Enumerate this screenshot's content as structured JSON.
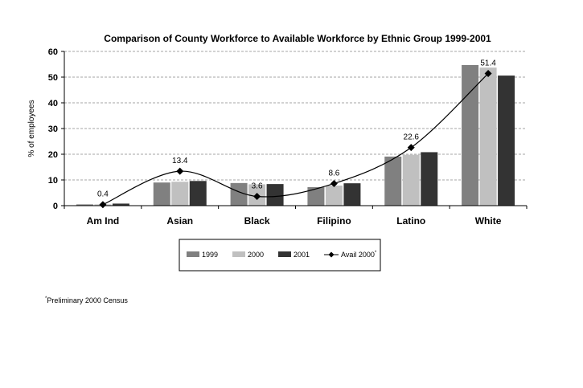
{
  "chart_data": {
    "type": "bar",
    "title": "Comparison of County Workforce to Available Workforce by Ethnic Group 1999-2001",
    "ylabel": "% of employees",
    "xlabel": "",
    "ylim": [
      0,
      60
    ],
    "yticks": [
      "0",
      "10",
      "20",
      "30",
      "40",
      "50",
      "60"
    ],
    "grid": true,
    "legend_position": "bottom",
    "categories": [
      "Am Ind",
      "Asian",
      "Black",
      "Filipino",
      "Latino",
      "White"
    ],
    "series": [
      {
        "name": "1999",
        "type": "bar",
        "color": "#808080",
        "values": [
          0.5,
          9.0,
          8.8,
          7.2,
          19.1,
          54.7
        ]
      },
      {
        "name": "2000",
        "type": "bar",
        "color": "#c0c0c0",
        "values": [
          0.5,
          9.3,
          8.3,
          7.8,
          19.8,
          53.7
        ]
      },
      {
        "name": "2001",
        "type": "bar",
        "color": "#333333",
        "values": [
          0.8,
          9.6,
          8.4,
          8.7,
          20.8,
          50.6
        ]
      },
      {
        "name": "Avail 2000",
        "name_superscript": "*",
        "type": "line",
        "color": "#000000",
        "values": [
          0.4,
          13.4,
          3.6,
          8.6,
          22.6,
          51.4
        ],
        "labels": [
          "0.4",
          "13.4",
          "3.6",
          "8.6",
          "22.6",
          "51.4"
        ]
      }
    ]
  },
  "footnote": {
    "marker": "*",
    "text": "Preliminary 2000 Census"
  }
}
